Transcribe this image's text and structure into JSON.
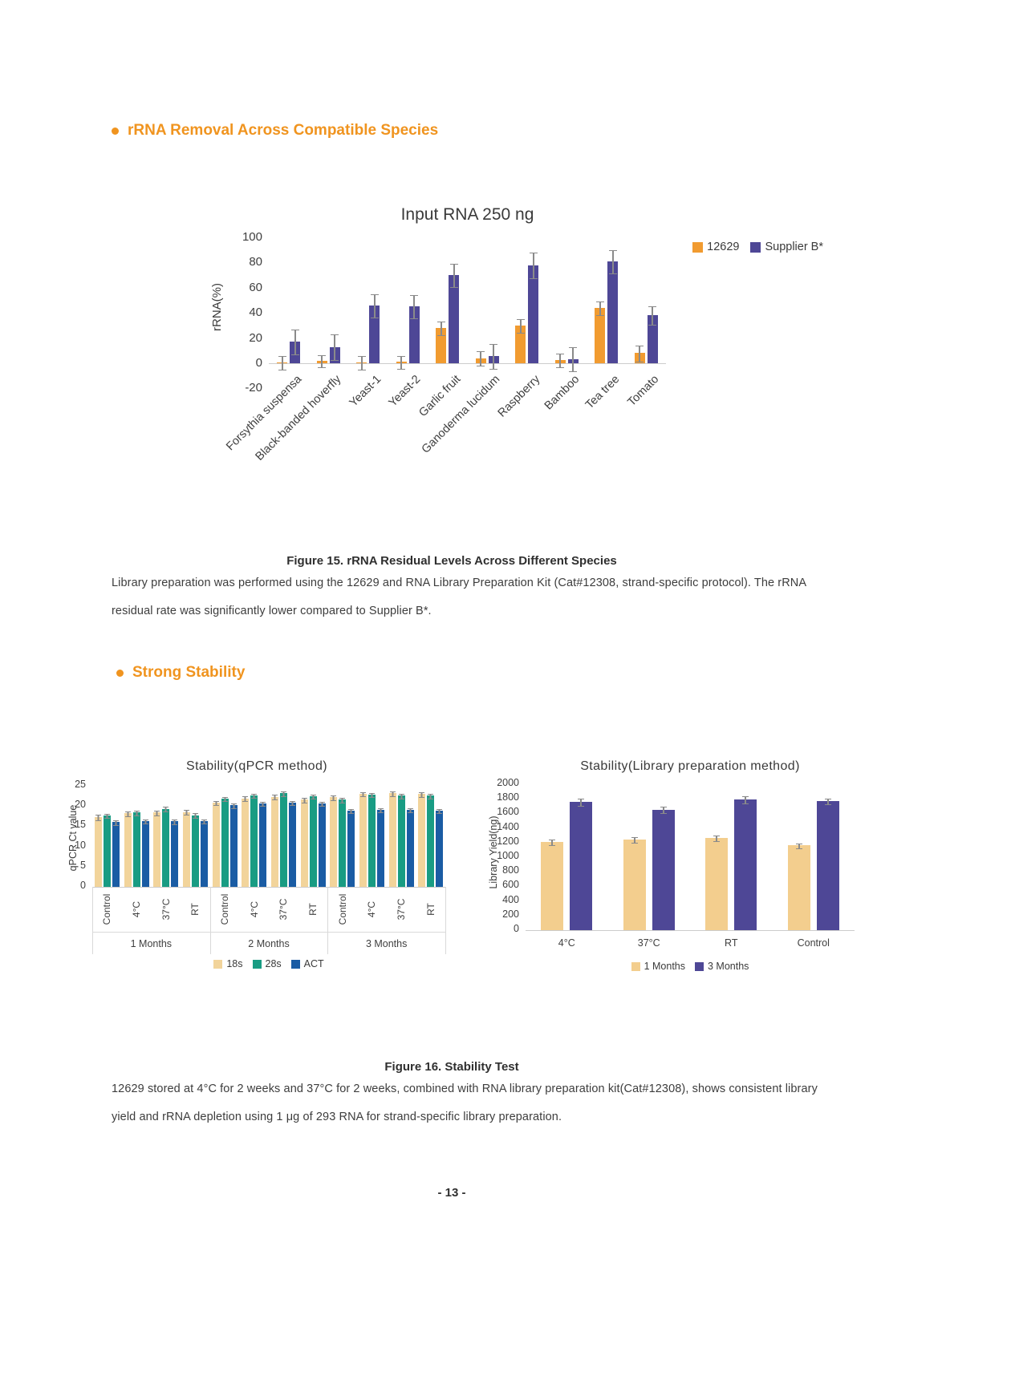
{
  "colors": {
    "accent_orange": "#F0941F",
    "series_orange": "#F19B30",
    "series_purple": "#4E4796",
    "series_tan": "#F2D49B",
    "series_teal": "#199C83",
    "series_blue": "#1A5CA4"
  },
  "headings": {
    "species": "rRNA Removal Across Compatible Species",
    "stability": "Strong Stability"
  },
  "figure15": {
    "caption": "Figure 15. rRNA Residual Levels Across Different Species",
    "body_line1": "Library preparation was performed using the 12629 and RNA Library Preparation Kit (Cat#12308, strand-specific protocol). The rRNA",
    "body_line2": "residual rate was significantly lower compared to Supplier B*."
  },
  "figure16": {
    "caption": "Figure 16. Stability Test",
    "body_line1": "12629 stored at 4°C for 2 weeks and 37°C for 2 weeks, combined with RNA library preparation kit(Cat#12308), shows consistent library",
    "body_line2": "yield and rRNA depletion using 1 μg of 293 RNA for strand-specific library preparation."
  },
  "page_number": "- 13 -",
  "chart_data": [
    {
      "id": "rna_residual",
      "type": "bar",
      "title": "Input RNA 250 ng",
      "xlabel": "",
      "ylabel": "rRNA(%)",
      "ylim": [
        -20,
        100
      ],
      "yticks": [
        100,
        80,
        60,
        40,
        20,
        0,
        -20
      ],
      "grid": false,
      "legend_position": "top-right",
      "categories": [
        "Forsythia suspensa",
        "Black-banded hoverfly",
        "Yeast-1",
        "Yeast-2",
        "Garlic fruit",
        "Ganoderma lucidum",
        "Raspberry",
        "Bamboo",
        "Tea tree",
        "Tomato"
      ],
      "series": [
        {
          "name": "12629",
          "color": "#F19B30",
          "values": [
            0.5,
            2,
            0.5,
            1,
            28,
            4,
            30,
            2.5,
            44,
            8
          ],
          "errors": [
            5,
            4.5,
            5,
            5,
            5,
            5.5,
            5,
            5,
            5,
            6
          ]
        },
        {
          "name": "Supplier B*",
          "color": "#4E4796",
          "values": [
            17,
            13,
            46,
            45,
            70,
            5.5,
            78,
            3.5,
            81,
            38
          ],
          "errors": [
            9.5,
            10,
            9,
            9,
            9,
            9.5,
            10,
            9.5,
            9,
            7
          ]
        }
      ]
    },
    {
      "id": "stability_qpcr",
      "type": "bar",
      "title": "Stability(qPCR method)",
      "xlabel": "",
      "ylabel": "qPCR Ct value",
      "ylim": [
        0,
        25
      ],
      "yticks": [
        25,
        20,
        15,
        10,
        5,
        0
      ],
      "grid": false,
      "legend_position": "bottom",
      "group_labels": [
        "1 Months",
        "2 Months",
        "3 Months"
      ],
      "categories": [
        "Control",
        "4°C",
        "37°C",
        "RT",
        "Control",
        "4°C",
        "37°C",
        "RT",
        "Control",
        "4°C",
        "37°C",
        "RT"
      ],
      "series": [
        {
          "name": "18s",
          "color": "#F2D49B",
          "values": [
            17.3,
            18.2,
            18.4,
            18.5,
            20.9,
            21.9,
            22.3,
            21.6,
            22.2,
            23.1,
            23.2,
            23.0
          ],
          "errors": [
            0.6,
            0.5,
            0.5,
            0.5,
            0.4,
            0.5,
            0.5,
            0.5,
            0.5,
            0.4,
            0.5,
            0.5
          ]
        },
        {
          "name": "28s",
          "color": "#199C83",
          "values": [
            17.6,
            18.4,
            19.3,
            17.7,
            21.8,
            22.6,
            23.2,
            22.5,
            21.6,
            22.9,
            22.6,
            22.6
          ],
          "errors": [
            0.4,
            0.5,
            0.5,
            0.5,
            0.4,
            0.4,
            0.5,
            0.4,
            0.5,
            0.4,
            0.5,
            0.5
          ]
        },
        {
          "name": "ACT",
          "color": "#1A5CA4",
          "values": [
            16.0,
            16.3,
            16.2,
            16.3,
            20.2,
            20.6,
            20.8,
            20.6,
            18.9,
            19.0,
            19.1,
            18.9
          ],
          "errors": [
            0.5,
            0.4,
            0.5,
            0.4,
            0.5,
            0.4,
            0.4,
            0.4,
            0.4,
            0.4,
            0.4,
            0.4
          ]
        }
      ]
    },
    {
      "id": "stability_library",
      "type": "bar",
      "title": "Stability(Library preparation method)",
      "xlabel": "",
      "ylabel": "Library Yield(ng)",
      "ylim": [
        0,
        2000
      ],
      "yticks": [
        2000,
        1800,
        1600,
        1400,
        1200,
        1000,
        800,
        600,
        400,
        200,
        0
      ],
      "grid": false,
      "legend_position": "bottom",
      "categories": [
        "4°C",
        "37°C",
        "RT",
        "Control"
      ],
      "series": [
        {
          "name": "1 Months",
          "color": "#F3CE8E",
          "values": [
            1210,
            1240,
            1265,
            1160
          ],
          "errors": [
            30,
            35,
            30,
            30
          ]
        },
        {
          "name": "3 Months",
          "color": "#4E4796",
          "values": [
            1760,
            1650,
            1790,
            1770
          ],
          "errors": [
            45,
            40,
            45,
            35
          ]
        }
      ]
    }
  ]
}
